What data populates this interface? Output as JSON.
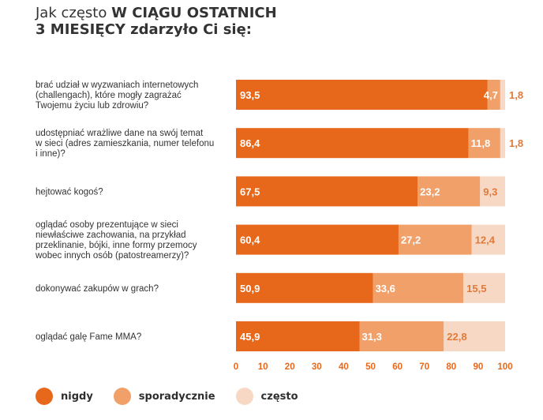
{
  "title": {
    "prefix": "Jak często ",
    "emphasis": "W CIĄGU OSTATNICH",
    "line2": "3 MIESIĘCY zdarzyło Ci się:"
  },
  "colors": {
    "nigdy": "#e8681b",
    "sporadycznie": "#f0a068",
    "czesto": "#f7d8c4"
  },
  "chart_data": {
    "type": "bar",
    "orientation": "horizontal",
    "stacked": true,
    "categories": [
      "brać udział w wyzwaniach internetowych (challengach), które mogły zagrażać Twojemu życiu lub zdrowiu?",
      "udostępniać wrażliwe dane na swój temat w sieci (adres zamieszkania, numer telefonu i inne)?",
      "hejtować kogoś?",
      "oglądać osoby prezentujące w sieci niewłaściwe zachowania, na przykład przeklinanie, bójki, inne formy przemocy wobec innych osób (patostreamerzy)?",
      "dokonywać zakupów w grach?",
      "oglądać galę Fame MMA?"
    ],
    "category_lines": [
      [
        "brać udział w wyzwaniach internetowych",
        "(challengach), które mogły zagrażać",
        "Twojemu życiu lub zdrowiu?"
      ],
      [
        "udostępniać wrażliwe dane na swój temat",
        "w sieci (adres zamieszkania, numer telefonu",
        "i inne)?"
      ],
      [
        "hejtować kogoś?"
      ],
      [
        "oglądać osoby prezentujące w sieci",
        "niewłaściwe zachowania, na przykład",
        "przeklinanie, bójki, inne formy przemocy",
        "wobec innych osób (patostreamerzy)?"
      ],
      [
        "dokonywać zakupów w grach?"
      ],
      [
        "oglądać galę Fame MMA?"
      ]
    ],
    "series": [
      {
        "name": "nigdy",
        "values": [
          93.5,
          86.4,
          67.5,
          60.4,
          50.9,
          45.9
        ],
        "labels": [
          "93,5",
          "86,4",
          "67,5",
          "60,4",
          "50,9",
          "45,9"
        ]
      },
      {
        "name": "sporadycznie",
        "values": [
          4.7,
          11.8,
          23.2,
          27.2,
          33.6,
          31.3
        ],
        "labels": [
          "4,7",
          "11,8",
          "23,2",
          "27,2",
          "33,6",
          "31,3"
        ]
      },
      {
        "name": "często",
        "values": [
          1.8,
          1.8,
          9.3,
          12.4,
          15.5,
          22.8
        ],
        "labels": [
          "1,8",
          "1,8",
          "9,3",
          "12,4",
          "15,5",
          "22,8"
        ]
      }
    ],
    "xlim": [
      0,
      100
    ],
    "xticks": [
      "0",
      "10",
      "20",
      "30",
      "40",
      "50",
      "60",
      "70",
      "80",
      "90",
      "100"
    ],
    "legend_position": "bottom-left"
  }
}
